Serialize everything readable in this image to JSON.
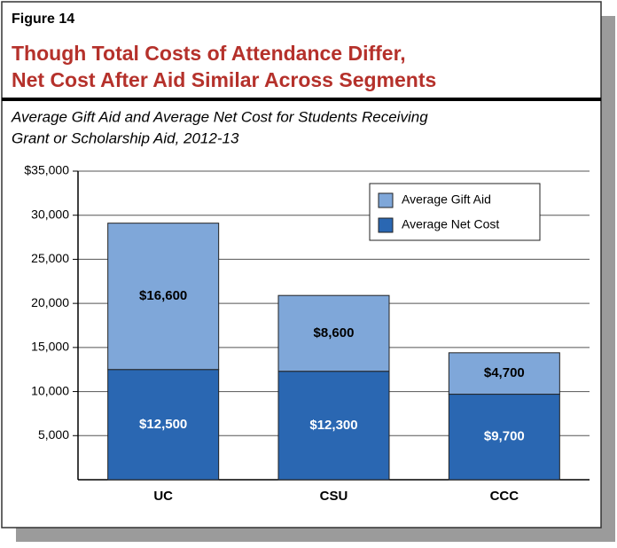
{
  "chart_data": {
    "type": "stacked-bar",
    "label": "Figure 14",
    "title": [
      "Though Total Costs of Attendance Differ,",
      "Net Cost After Aid Similar Across Segments"
    ],
    "subtitle": [
      "Average Gift Aid and Average Net Cost for Students Receiving",
      "Grant or Scholarship Aid, 2012-13"
    ],
    "categories": [
      "UC",
      "CSU",
      "CCC"
    ],
    "series": [
      {
        "name": "Average Gift Aid",
        "color": "#7fa7d9",
        "values": [
          16600,
          8600,
          4700
        ],
        "value_labels": [
          "$16,600",
          "$8,600",
          "$4,700"
        ]
      },
      {
        "name": "Average Net Cost",
        "color": "#2a67b2",
        "values": [
          12500,
          12300,
          9700
        ],
        "value_labels": [
          "$12,500",
          "$12,300",
          "$9,700"
        ]
      }
    ],
    "ylim": [
      0,
      35000
    ],
    "yticks": [
      {
        "value": 5000,
        "label": "5,000"
      },
      {
        "value": 10000,
        "label": "10,000"
      },
      {
        "value": 15000,
        "label": "15,000"
      },
      {
        "value": 20000,
        "label": "20,000"
      },
      {
        "value": 25000,
        "label": "25,000"
      },
      {
        "value": 30000,
        "label": "30,000"
      },
      {
        "value": 35000,
        "label": "$35,000"
      }
    ],
    "grid": true,
    "legend": "top-right"
  }
}
